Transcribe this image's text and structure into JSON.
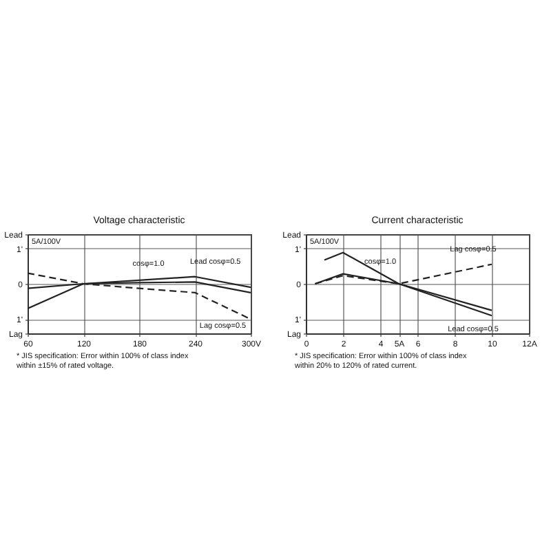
{
  "chart_data": [
    {
      "type": "line",
      "title": "Voltage characteristic",
      "grid": true,
      "marker": "none",
      "x": [
        60,
        120,
        180,
        240,
        300
      ],
      "xlim": [
        60,
        300
      ],
      "xticks": [
        60,
        120,
        180,
        240,
        {
          "value": 300,
          "label": "300V"
        }
      ],
      "ylim": [
        -1.4,
        1.4
      ],
      "yticks": [
        {
          "value": -1.4,
          "label": "Lag"
        },
        {
          "value": -1,
          "label": "1'"
        },
        0,
        {
          "value": 1,
          "label": "1'"
        },
        {
          "value": 1.4,
          "label": "Lead"
        }
      ],
      "series": [
        {
          "color": "#222222",
          "line_style": "solid",
          "values": [
            -0.13,
            0,
            0.03,
            0.05,
            -0.25
          ]
        },
        {
          "color": "#222222",
          "line_style": "solid",
          "values": [
            -0.7,
            0,
            0.1,
            0.2,
            -0.1
          ]
        },
        {
          "color": "#222222",
          "line_style": "dashed",
          "values": [
            0.3,
            0,
            -0.13,
            -0.25,
            -1.0
          ]
        }
      ],
      "annotations": [
        "5A/100V",
        {
          "text": "cosφ=1.0",
          "x": 190,
          "y": 0.04
        },
        {
          "text": "Lead cosφ=0.5",
          "x": 262,
          "y": 0.09
        },
        {
          "text": "Lag cosφ=0.5",
          "x": 270,
          "y": -0.63
        },
        "* JIS specification: Error within 100% of class index within ±15% of rated voltage."
      ]
    },
    {
      "type": "line",
      "title": "Current characteristic",
      "grid": true,
      "marker": "none",
      "xlim": [
        0,
        12
      ],
      "xticks": [
        0,
        2,
        4,
        {
          "value": 5,
          "label": "5A"
        },
        6,
        8,
        10,
        {
          "value": 12,
          "label": "12A"
        }
      ],
      "ylim": [
        -1.4,
        1.4
      ],
      "yticks": [
        {
          "value": -1.4,
          "label": "Lag"
        },
        {
          "value": -1,
          "label": "1'"
        },
        0,
        {
          "value": 1,
          "label": "1'"
        },
        {
          "value": 1.4,
          "label": "Lead"
        }
      ],
      "series": [
        {
          "color": "#222222",
          "line_style": "solid",
          "x": [
            0.5,
            2,
            5,
            10
          ],
          "values": [
            0,
            0.28,
            0,
            -0.75
          ]
        },
        {
          "color": "#222222",
          "line_style": "solid",
          "x": [
            1,
            2,
            5,
            10
          ],
          "values": [
            0.67,
            0.88,
            0,
            -0.9
          ]
        },
        {
          "color": "#222222",
          "line_style": "dashed",
          "x": [
            0.5,
            2,
            5,
            10
          ],
          "values": [
            0,
            0.23,
            0,
            0.55
          ]
        }
      ],
      "annotations": [
        "5A/100V",
        {
          "text": "cosφ=1.0",
          "x": 4,
          "y": 0.09
        },
        {
          "text": "Lag cosφ=0.5",
          "x": 9,
          "y": 0.44
        },
        {
          "text": "Lead cosφ=0.5",
          "x": 9,
          "y": -0.72
        },
        "* JIS specification: Error within 100% of class index within 20% to 120% of rated current."
      ]
    }
  ]
}
